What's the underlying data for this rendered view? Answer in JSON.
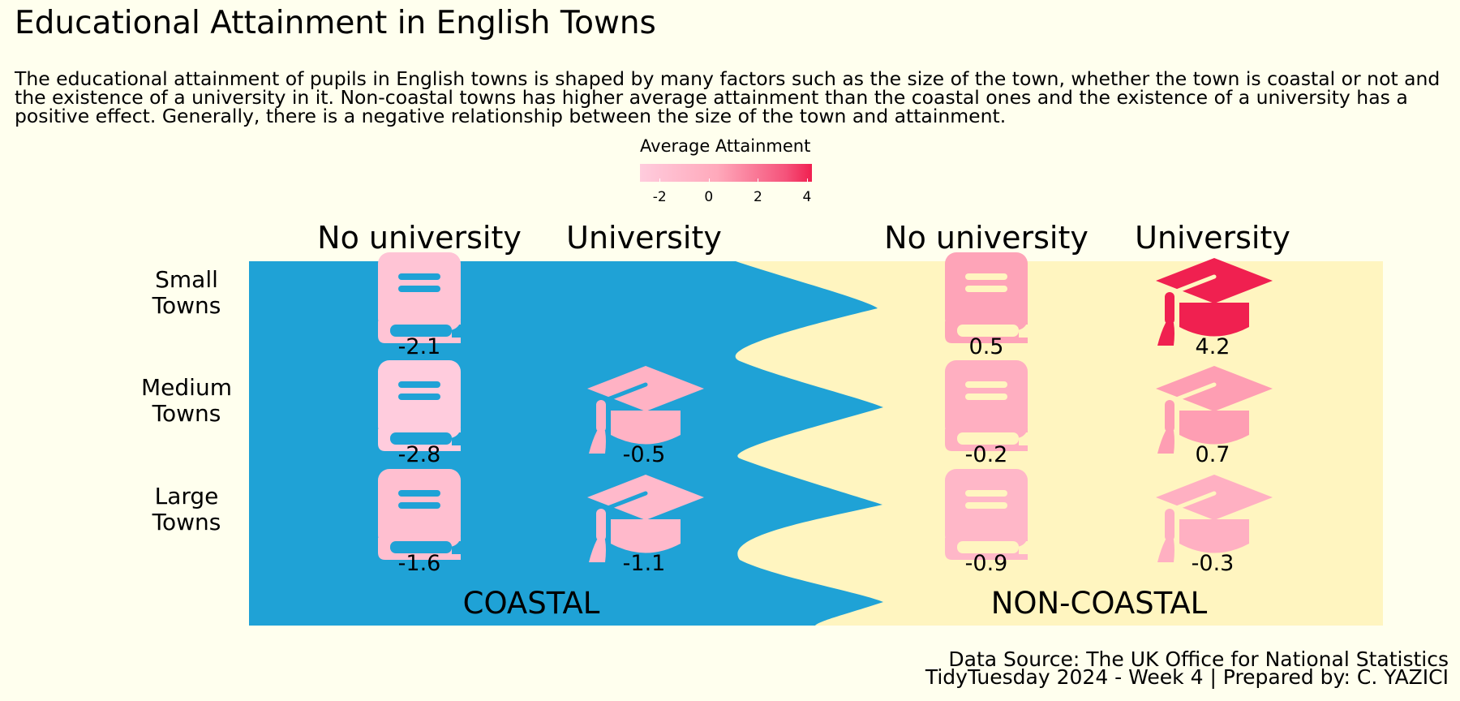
{
  "title": "Educational Attainment in English Towns",
  "subtitle": "The educational attainment of pupils in English towns is shaped by many factors such as the size of the town, whether the town is coastal or not and the existence of a university in it. Non-coastal towns has higher average attainment than the coastal ones and the existence of a university has a positive effect. Generally, there is a negative relationship between the size of the town and attainment.",
  "legend": {
    "title": "Average Attainment",
    "ticks": [
      "-2",
      "0",
      "2",
      "4"
    ],
    "tick_values": [
      -2,
      0,
      2,
      4
    ],
    "range": [
      -2.8,
      4.2
    ],
    "colors": [
      "#FFCCDD",
      "#FFA9BB",
      "#F5527A",
      "#F02050"
    ]
  },
  "colors": {
    "background": "#FFFFEE",
    "coastal": "#1FA2D6",
    "non_coastal": "#FFF5C0",
    "icon_detail_on_blue": "#1FA2D6",
    "icon_detail_on_cream": "#FFF5C0"
  },
  "caption": {
    "line1": "Data Source: The UK Office for National Statistics",
    "line2": "TidyTuesday 2024 - Week 4 | Prepared by: C. YAZICI"
  },
  "chart_data": {
    "type": "table",
    "title": "Educational Attainment in English Towns",
    "rows": [
      "Small\nTowns",
      "Medium\nTowns",
      "Large\nTowns"
    ],
    "row_labels": [
      [
        "Small",
        "Towns"
      ],
      [
        "Medium",
        "Towns"
      ],
      [
        "Large",
        "Towns"
      ]
    ],
    "columns": [
      "No university",
      "University",
      "No university",
      "University"
    ],
    "regions": [
      "COASTAL",
      "NON-COASTAL"
    ],
    "cells": [
      {
        "region": "COASTAL",
        "university": "No university",
        "size": "Small",
        "value": -2.1,
        "label": "-2.1",
        "icon": "book-icon"
      },
      {
        "region": "COASTAL",
        "university": "No university",
        "size": "Medium",
        "value": -2.8,
        "label": "-2.8",
        "icon": "book-icon"
      },
      {
        "region": "COASTAL",
        "university": "No university",
        "size": "Large",
        "value": -1.6,
        "label": "-1.6",
        "icon": "book-icon"
      },
      {
        "region": "COASTAL",
        "university": "University",
        "size": "Medium",
        "value": -0.5,
        "label": "-0.5",
        "icon": "graduation-cap-icon"
      },
      {
        "region": "COASTAL",
        "university": "University",
        "size": "Large",
        "value": -1.1,
        "label": "-1.1",
        "icon": "graduation-cap-icon"
      },
      {
        "region": "NON-COASTAL",
        "university": "No university",
        "size": "Small",
        "value": 0.5,
        "label": "0.5",
        "icon": "book-icon"
      },
      {
        "region": "NON-COASTAL",
        "university": "No university",
        "size": "Medium",
        "value": -0.2,
        "label": "-0.2",
        "icon": "book-icon"
      },
      {
        "region": "NON-COASTAL",
        "university": "No university",
        "size": "Large",
        "value": -0.9,
        "label": "-0.9",
        "icon": "book-icon"
      },
      {
        "region": "NON-COASTAL",
        "university": "University",
        "size": "Small",
        "value": 4.2,
        "label": "4.2",
        "icon": "graduation-cap-icon"
      },
      {
        "region": "NON-COASTAL",
        "university": "University",
        "size": "Medium",
        "value": 0.7,
        "label": "0.7",
        "icon": "graduation-cap-icon"
      },
      {
        "region": "NON-COASTAL",
        "university": "University",
        "size": "Large",
        "value": -0.3,
        "label": "-0.3",
        "icon": "graduation-cap-icon"
      }
    ]
  }
}
